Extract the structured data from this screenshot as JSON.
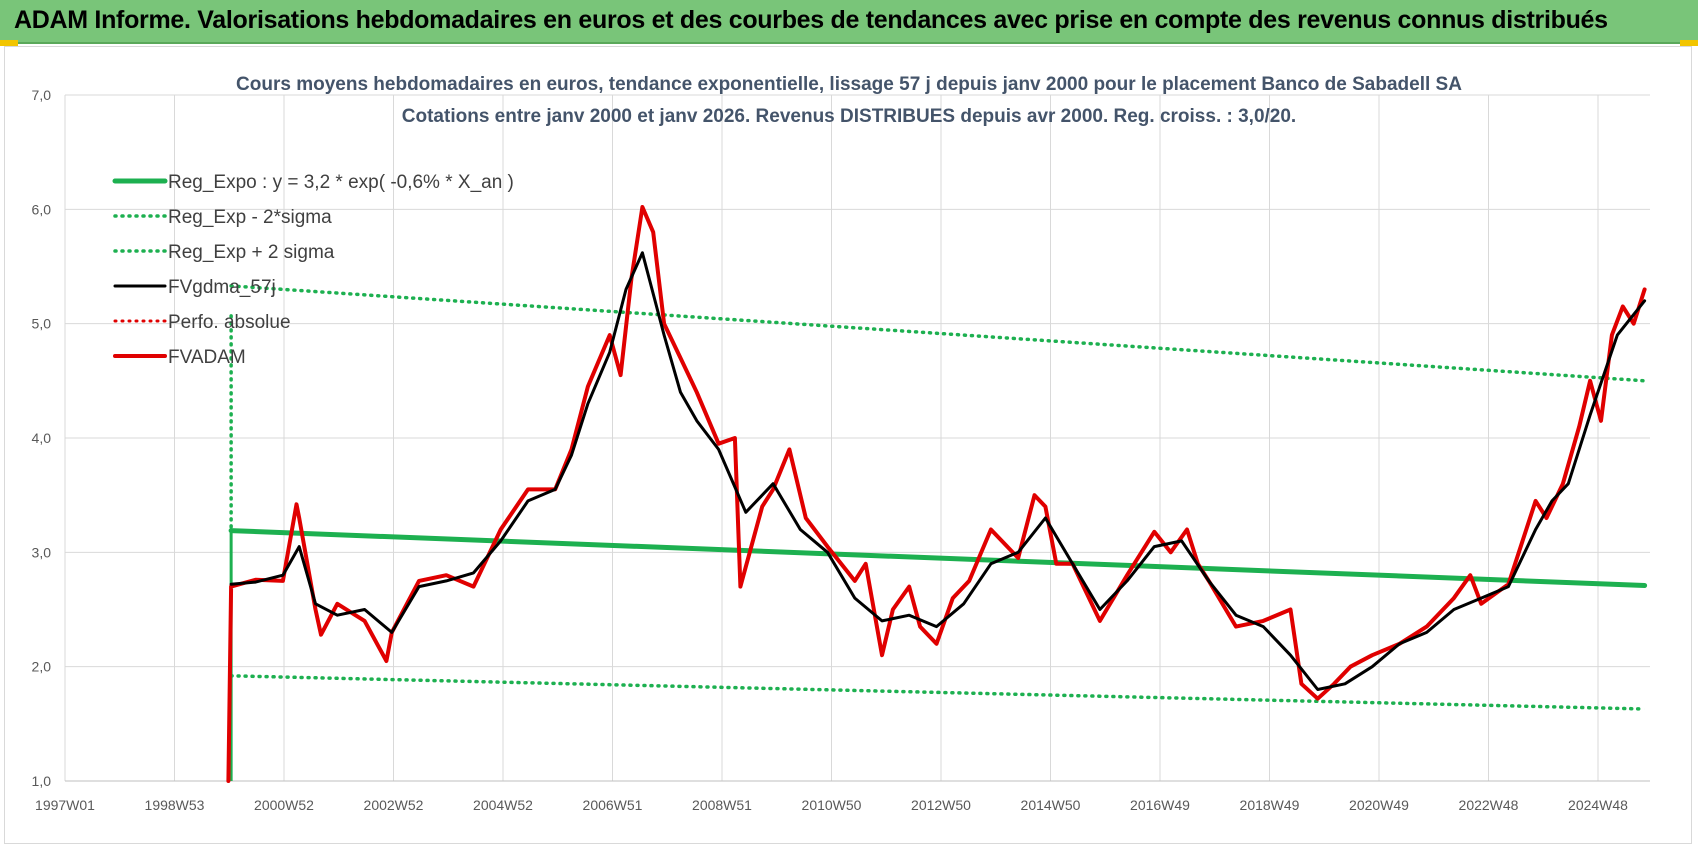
{
  "banner": {
    "title": "ADAM Informe. Valorisations hebdomadaires en euros et des courbes de tendances avec prise en compte des revenus connus distribués"
  },
  "colors": {
    "banner": "#79c579",
    "trend": "#1db050",
    "sigma": "#1db050",
    "smoothed": "#000000",
    "perfo": "#e00000",
    "fvadam": "#e00000",
    "grid": "#d9d9d9"
  },
  "chart_data": {
    "type": "line",
    "title": [
      "Cours moyens hebdomadaires en euros, tendance exponentielle, lissage 57 j depuis janv 2000 pour le placement Banco de Sabadell SA",
      "Cotations entre janv 2000 et janv 2026. Revenus DISTRIBUES depuis avr 2000. Reg. croiss. : 3,0/20."
    ],
    "xlabel": "",
    "ylabel": "",
    "x_ticks": [
      "1997W01",
      "1998W53",
      "2000W52",
      "2002W52",
      "2004W52",
      "2006W51",
      "2008W51",
      "2010W50",
      "2012W50",
      "2014W50",
      "2016W49",
      "2018W49",
      "2020W49",
      "2022W48",
      "2024W48"
    ],
    "x_range": [
      1997.0,
      2026.1
    ],
    "y_ticks": [
      "1,0",
      "2,0",
      "3,0",
      "4,0",
      "5,0",
      "6,0",
      "7,0"
    ],
    "ylim": [
      1.0,
      7.0
    ],
    "grid": true,
    "legend_position": "top-left",
    "series": [
      {
        "name": "Reg_Expo : y = 3,2 * exp( -0,6% *  X_an )",
        "style": "solid-thick",
        "x": [
          2000.05,
          2026.0
        ],
        "y": [
          3.19,
          2.71
        ]
      },
      {
        "name": "Reg_Exp - 2*sigma",
        "style": "dotted",
        "x": [
          2000.05,
          2026.0
        ],
        "y": [
          1.92,
          1.63
        ]
      },
      {
        "name": "Reg_Exp + 2 sigma",
        "style": "dotted",
        "x": [
          2000.05,
          2026.0
        ],
        "y": [
          5.33,
          4.5
        ]
      },
      {
        "name": "FVgdma_57j",
        "style": "solid",
        "x": [
          2000.05,
          2000.5,
          2001.0,
          2001.3,
          2001.6,
          2002.0,
          2002.5,
          2003.0,
          2003.5,
          2004.0,
          2004.5,
          2005.0,
          2005.5,
          2006.0,
          2006.3,
          2006.6,
          2007.0,
          2007.3,
          2007.6,
          2008.0,
          2008.3,
          2008.6,
          2009.0,
          2009.5,
          2010.0,
          2010.5,
          2011.0,
          2011.5,
          2012.0,
          2012.5,
          2013.0,
          2013.5,
          2014.0,
          2014.5,
          2015.0,
          2015.5,
          2016.0,
          2016.5,
          2017.0,
          2017.5,
          2018.0,
          2018.5,
          2019.0,
          2019.5,
          2020.0,
          2020.5,
          2021.0,
          2021.5,
          2022.0,
          2022.5,
          2023.0,
          2023.5,
          2024.0,
          2024.3,
          2024.6,
          2025.0,
          2025.5,
          2026.0
        ],
        "y": [
          2.72,
          2.74,
          2.8,
          3.05,
          2.55,
          2.45,
          2.5,
          2.3,
          2.7,
          2.75,
          2.82,
          3.1,
          3.45,
          3.55,
          3.85,
          4.3,
          4.75,
          5.3,
          5.62,
          4.9,
          4.4,
          4.15,
          3.9,
          3.35,
          3.6,
          3.2,
          3.0,
          2.6,
          2.4,
          2.45,
          2.35,
          2.55,
          2.9,
          3.0,
          3.3,
          2.9,
          2.5,
          2.75,
          3.05,
          3.1,
          2.75,
          2.45,
          2.35,
          2.1,
          1.8,
          1.85,
          2.0,
          2.2,
          2.3,
          2.5,
          2.6,
          2.7,
          3.2,
          3.45,
          3.6,
          4.2,
          4.9,
          5.2
        ]
      },
      {
        "name": "Perfo. absolue",
        "style": "dotted",
        "x": [],
        "y": []
      },
      {
        "name": "FVADAM",
        "style": "solid-thick",
        "x": [
          2000.0,
          2000.05,
          2000.5,
          2001.0,
          2001.25,
          2001.3,
          2001.6,
          2001.7,
          2002.0,
          2002.5,
          2002.9,
          2003.0,
          2003.5,
          2004.0,
          2004.5,
          2005.0,
          2005.5,
          2006.0,
          2006.3,
          2006.6,
          2007.0,
          2007.2,
          2007.4,
          2007.6,
          2007.8,
          2008.0,
          2008.3,
          2008.6,
          2009.0,
          2009.3,
          2009.4,
          2009.8,
          2010.0,
          2010.3,
          2010.6,
          2011.0,
          2011.5,
          2011.7,
          2012.0,
          2012.2,
          2012.5,
          2012.7,
          2013.0,
          2013.3,
          2013.6,
          2014.0,
          2014.5,
          2014.8,
          2015.0,
          2015.2,
          2015.5,
          2016.0,
          2016.5,
          2017.0,
          2017.3,
          2017.6,
          2017.8,
          2018.0,
          2018.5,
          2019.0,
          2019.5,
          2019.7,
          2020.0,
          2020.3,
          2020.6,
          2021.0,
          2021.5,
          2022.0,
          2022.5,
          2022.8,
          2023.0,
          2023.5,
          2024.0,
          2024.2,
          2024.5,
          2024.8,
          2025.0,
          2025.2,
          2025.4,
          2025.6,
          2025.8,
          2026.0
        ],
        "y": [
          1.0,
          2.7,
          2.76,
          2.75,
          3.42,
          3.3,
          2.5,
          2.28,
          2.55,
          2.4,
          2.05,
          2.3,
          2.75,
          2.8,
          2.7,
          3.2,
          3.55,
          3.55,
          3.9,
          4.45,
          4.9,
          4.55,
          5.4,
          6.02,
          5.8,
          5.0,
          4.7,
          4.4,
          3.95,
          4.0,
          2.7,
          3.4,
          3.55,
          3.9,
          3.3,
          3.05,
          2.75,
          2.9,
          2.1,
          2.5,
          2.7,
          2.35,
          2.2,
          2.6,
          2.75,
          3.2,
          2.95,
          3.5,
          3.4,
          2.9,
          2.9,
          2.4,
          2.8,
          3.18,
          3.0,
          3.2,
          2.9,
          2.75,
          2.35,
          2.4,
          2.5,
          1.85,
          1.72,
          1.85,
          2.0,
          2.1,
          2.2,
          2.35,
          2.6,
          2.8,
          2.55,
          2.72,
          3.45,
          3.3,
          3.6,
          4.1,
          4.5,
          4.15,
          4.9,
          5.15,
          5.0,
          5.3
        ]
      }
    ]
  }
}
